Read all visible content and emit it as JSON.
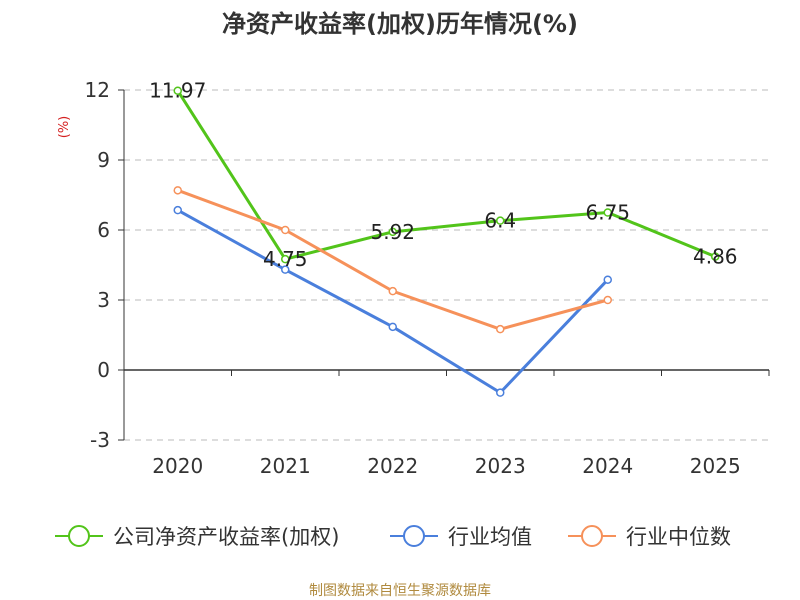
{
  "chart_data": {
    "type": "line",
    "title": "净资产收益率(加权)历年情况(%)",
    "ylabel": "(%)",
    "xlabel": "",
    "categories": [
      "2020",
      "2021",
      "2022",
      "2023",
      "2024",
      "2025"
    ],
    "ylim": [
      -3,
      12
    ],
    "yticks": [
      -3,
      0,
      3,
      6,
      9,
      12
    ],
    "grid": true,
    "legend_position": "bottom",
    "series": [
      {
        "name": "公司净资产收益率(加权)",
        "color": "#52c41a",
        "values": [
          11.97,
          4.75,
          5.92,
          6.4,
          6.75,
          4.86
        ],
        "labels": [
          "11.97",
          "4.75",
          "5.92",
          "6.4",
          "6.75",
          "4.86"
        ],
        "show_labels": true
      },
      {
        "name": "行业均值",
        "color": "#4a7fdc",
        "values": [
          6.85,
          4.3,
          1.85,
          -0.97,
          3.87,
          null
        ],
        "show_labels": false
      },
      {
        "name": "行业中位数",
        "color": "#f6915a",
        "values": [
          7.7,
          6.0,
          3.38,
          1.75,
          3.0,
          null
        ],
        "show_labels": false
      }
    ]
  },
  "source": "制图数据来自恒生聚源数据库"
}
